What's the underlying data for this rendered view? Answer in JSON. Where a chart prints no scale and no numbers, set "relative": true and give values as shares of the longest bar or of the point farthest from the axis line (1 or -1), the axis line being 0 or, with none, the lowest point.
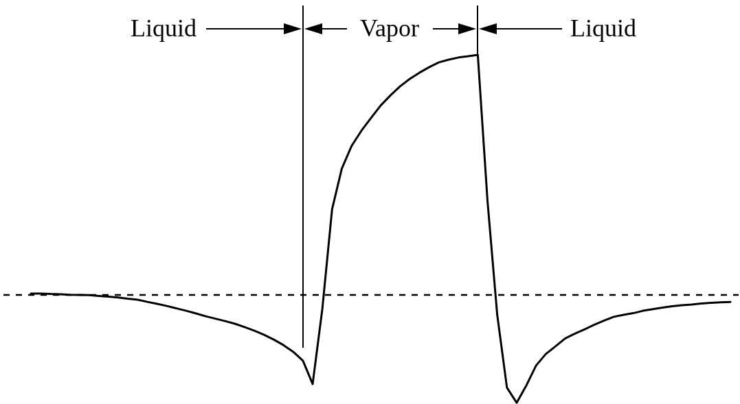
{
  "chart_data": {
    "type": "line",
    "relative": true,
    "marker": "none",
    "line_style": "solid",
    "categories": [
      null,
      null,
      null,
      null,
      null,
      null,
      null,
      null,
      null,
      null,
      null,
      null,
      null,
      null,
      null,
      null,
      null,
      null,
      null,
      null,
      null,
      null,
      null,
      null,
      null,
      null,
      null,
      null,
      null,
      null,
      null,
      null,
      null,
      null,
      null,
      null,
      null,
      null,
      null,
      null,
      null,
      null,
      null,
      null,
      null,
      null,
      null,
      null,
      null,
      null,
      null,
      null,
      null,
      null,
      null,
      null,
      null,
      null,
      null,
      null,
      null,
      null,
      null,
      null,
      null,
      null,
      null,
      null,
      null,
      null,
      null,
      null,
      null
    ],
    "series": [
      {
        "color": "#000000",
        "values": [
          0.006,
          0.006,
          0.004,
          0.003,
          0.001,
          0.0,
          -0.001,
          -0.004,
          -0.007,
          -0.011,
          -0.016,
          -0.02,
          -0.029,
          -0.037,
          -0.046,
          -0.056,
          -0.066,
          -0.077,
          -0.089,
          -0.099,
          -0.109,
          -0.12,
          -0.134,
          -0.149,
          -0.166,
          -0.186,
          -0.209,
          -0.237,
          -0.274,
          -0.371,
          -0.057,
          0.357,
          0.526,
          0.62,
          0.683,
          0.737,
          0.789,
          0.831,
          0.869,
          0.9,
          0.926,
          0.949,
          0.969,
          0.98,
          0.989,
          0.994,
          1.0,
          0.391,
          -0.083,
          -0.386,
          -0.449,
          -0.377,
          -0.294,
          -0.246,
          -0.214,
          -0.181,
          -0.161,
          -0.143,
          -0.124,
          -0.107,
          -0.091,
          -0.083,
          -0.076,
          -0.066,
          -0.059,
          -0.053,
          -0.047,
          -0.043,
          -0.04,
          -0.036,
          -0.033,
          -0.031,
          -0.029
        ]
      }
    ],
    "ref_lines": [
      {
        "axis": "y",
        "value": 0,
        "line_style": "dashed",
        "color": "#000000"
      }
    ],
    "annotations": [
      "Liquid",
      "Vapor",
      "Liquid"
    ]
  }
}
